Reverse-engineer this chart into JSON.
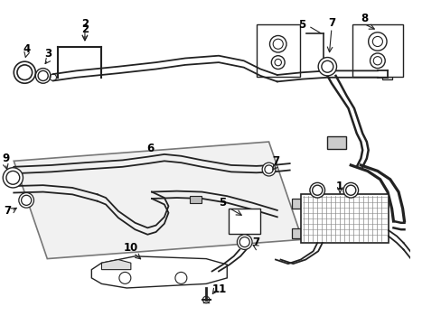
{
  "bg_color": "#ffffff",
  "line_color": "#222222",
  "figsize": [
    4.89,
    3.6
  ],
  "dpi": 100,
  "panel_color": "#e0e0e0",
  "label_fontsize": 8.5
}
